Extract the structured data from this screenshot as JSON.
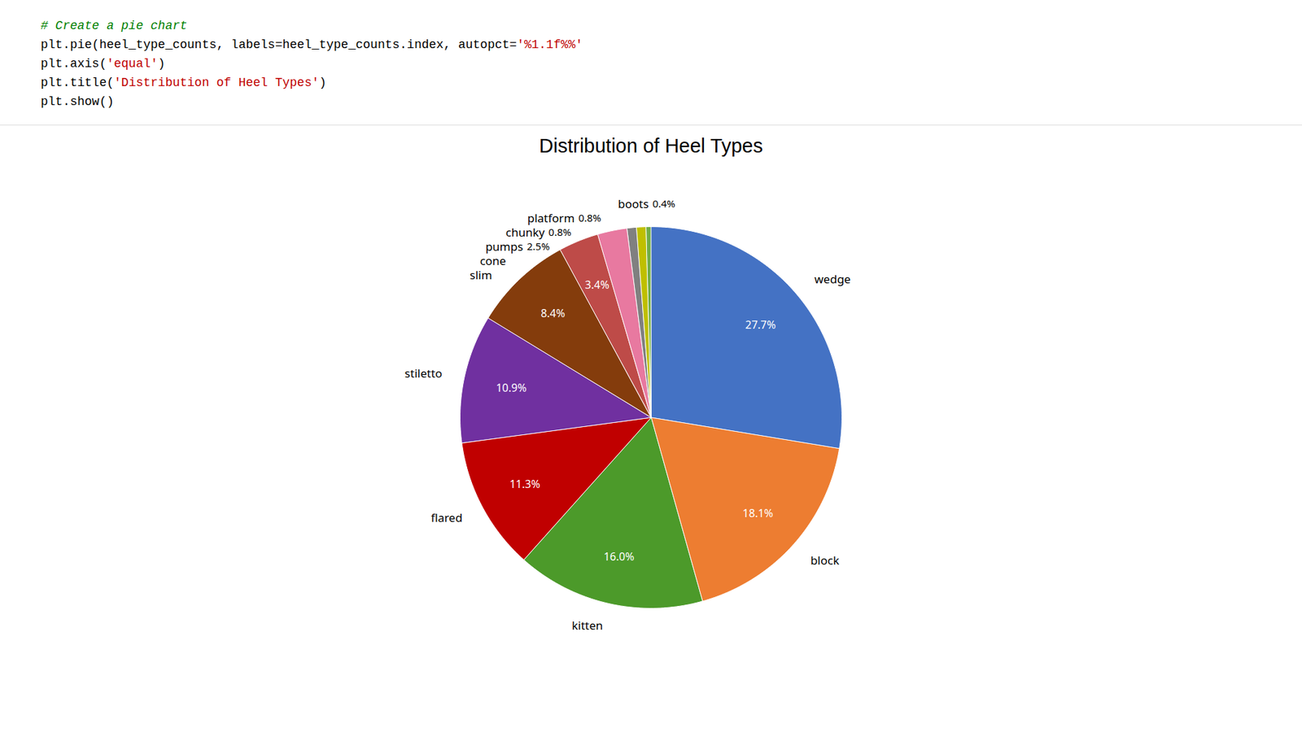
{
  "chart_data": {
    "type": "pie",
    "title": "Distribution of Heel Types",
    "categories": [
      "wedge",
      "block",
      "kitten",
      "flared",
      "stiletto",
      "slim",
      "cone",
      "pumps",
      "chunky",
      "platform",
      "boots"
    ],
    "values": [
      27.7,
      18.1,
      16.0,
      11.3,
      10.9,
      8.4,
      3.4,
      2.5,
      0.8,
      0.8,
      0.4
    ],
    "value_labels": [
      "27.7%",
      "18.1%",
      "16.0%",
      "11.3%",
      "10.9%",
      "8.4%",
      "3.4%",
      "2.5%",
      "0.8%",
      "0.8%",
      "0.4%"
    ],
    "colors": [
      "#4472C4",
      "#ED7D31",
      "#4C9A2A",
      "#C00000",
      "#7030A0",
      "#843C0C",
      "#BE4B48",
      "#E879A0",
      "#808080",
      "#BFBF00",
      "#70AD47"
    ],
    "data_labels": true,
    "annotations": [
      "# Create a pie chart",
      "plt.pie(heel_type_counts, labels=heel_type_counts.index, autopct='%1.1f%%'",
      "plt.axis('equal')",
      "plt.title('Distribution of Heel Types')",
      "plt.show()"
    ]
  }
}
